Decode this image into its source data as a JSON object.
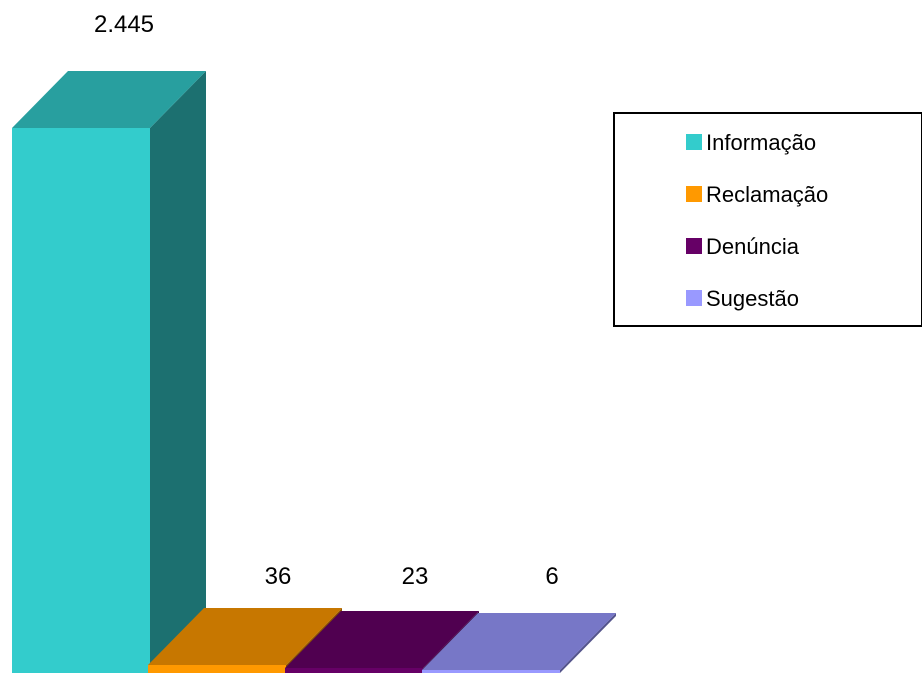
{
  "chart_data": {
    "type": "bar",
    "style": "3d",
    "categories": [
      "Informação",
      "Reclamação",
      "Denúncia",
      "Sugestão"
    ],
    "values": [
      2445,
      36,
      23,
      6
    ],
    "data_labels": [
      "2.445",
      "36",
      "23",
      "6"
    ],
    "colors": [
      "#33CCCC",
      "#FF9900",
      "#660066",
      "#9999FF"
    ],
    "legend_position": "top-right",
    "grid": false
  }
}
